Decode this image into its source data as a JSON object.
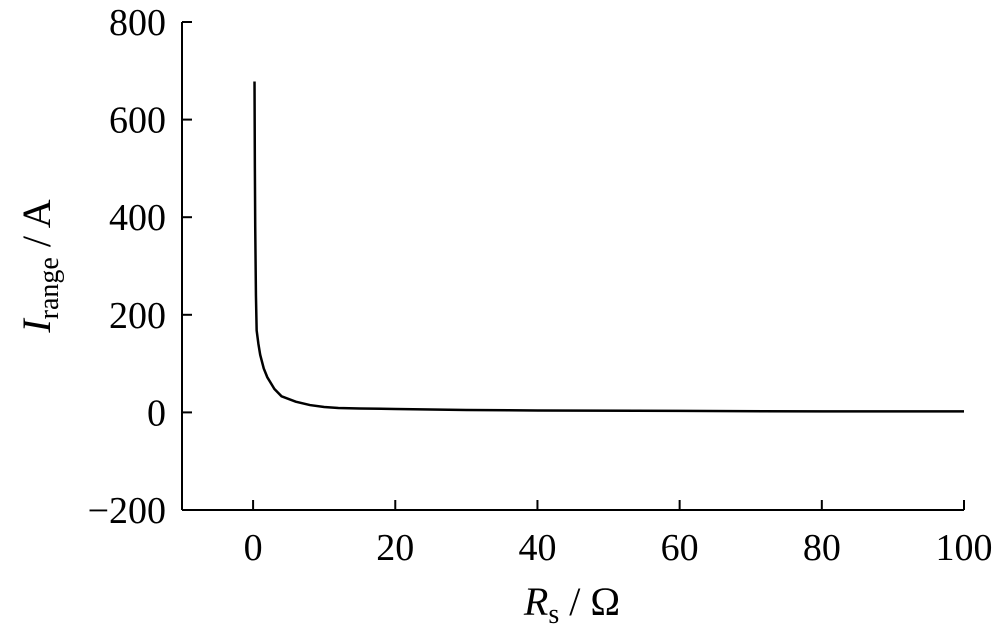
{
  "chart_data": {
    "type": "line",
    "x_label": [
      "R",
      "s",
      " / Ω"
    ],
    "y_label": [
      "I",
      "range",
      " / A"
    ],
    "x": [
      0.2,
      0.25,
      0.3,
      0.4,
      0.5,
      0.75,
      1,
      1.5,
      2,
      3,
      4,
      6,
      8,
      10,
      12,
      15,
      20,
      30,
      40,
      60,
      80,
      100
    ],
    "series": [
      {
        "color": "#000000",
        "values": [
          678,
          500,
          380,
          240,
          168,
          140,
          118,
          90,
          72,
          48,
          33,
          22,
          15,
          11,
          9,
          8,
          7,
          5,
          4,
          3,
          2,
          2
        ]
      }
    ],
    "xlim": [
      -10,
      100
    ],
    "xticks": [
      0,
      20,
      40,
      60,
      80,
      100
    ],
    "ylim": [
      -200,
      800
    ],
    "yticks": [
      {
        "value": -200,
        "label": "−200"
      },
      0,
      200,
      400,
      600,
      800
    ],
    "grid": false
  }
}
